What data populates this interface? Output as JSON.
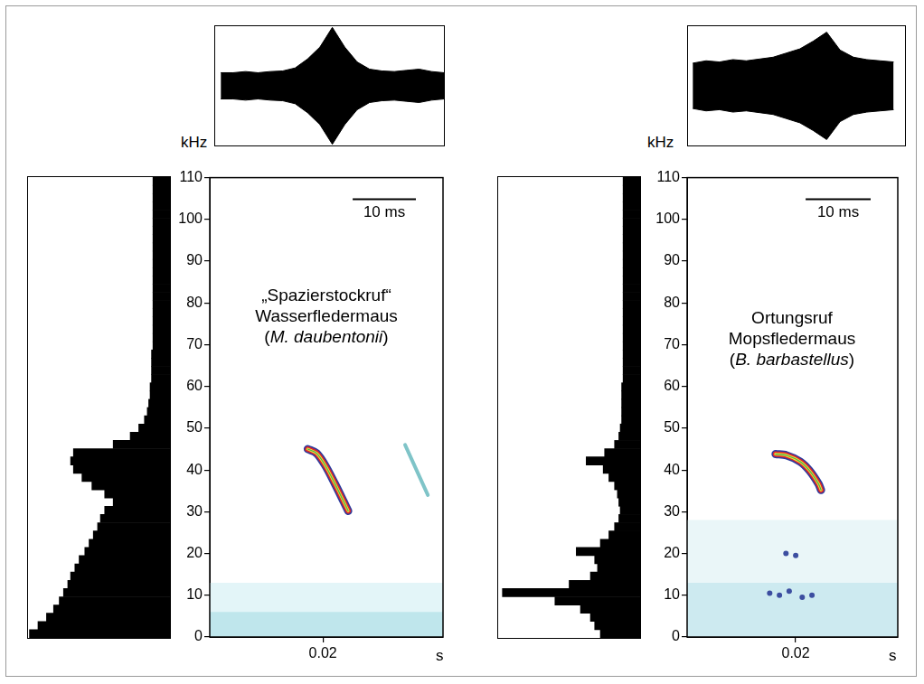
{
  "chart_data": [
    {
      "type": "spectrogram",
      "title": [
        "„Spazierstockruf“",
        "Wasserfledermaus",
        "(M. daubentonii)"
      ],
      "y_label": "kHz",
      "x_label": "s",
      "xlim": [
        0.0021,
        0.039
      ],
      "xticks": [
        0.02
      ],
      "ylim": [
        0,
        110
      ],
      "yticks": [
        0,
        10,
        20,
        30,
        40,
        50,
        60,
        70,
        80,
        90,
        100,
        110
      ],
      "grid": false,
      "scale_bar": {
        "value": 0.01,
        "label": "10 ms"
      },
      "series": [
        {
          "type": "area",
          "color": "#e3f5f8",
          "x": [
            0.0021,
            0.039
          ],
          "values": [
            13,
            13
          ]
        },
        {
          "type": "area",
          "color": "#bfe6ec",
          "x": [
            0.0021,
            0.039
          ],
          "values": [
            6,
            6
          ]
        },
        {
          "type": "line",
          "color": "#7fc4c8",
          "x": [
            0.033,
            0.0342,
            0.0354,
            0.0366
          ],
          "values": [
            46,
            42,
            38,
            34
          ]
        },
        {
          "type": "contour",
          "color": "#e0262a",
          "x": [
            0.0176,
            0.019,
            0.0204,
            0.0219,
            0.0233,
            0.024
          ],
          "values": [
            45,
            44,
            41,
            36.7,
            32.4,
            30.2
          ]
        }
      ],
      "spectrum": {
        "type": "bar",
        "orientation": "horizontal",
        "color": "#000000",
        "tick_labels": false,
        "xlim": [
          0,
          100
        ],
        "categories": [
          0,
          2,
          4,
          6,
          8,
          10,
          12,
          14,
          16,
          18,
          20,
          22,
          24,
          26,
          28,
          30,
          32,
          34,
          36,
          38,
          40,
          42,
          44,
          46,
          48,
          50,
          52,
          54,
          56,
          58,
          60,
          62,
          64,
          66,
          68,
          70,
          72,
          74,
          76,
          78,
          80,
          82,
          84,
          86,
          88,
          90,
          92,
          94,
          96,
          98,
          100,
          102,
          104,
          106,
          108,
          110
        ],
        "values": [
          99,
          93,
          87,
          82,
          78,
          75,
          72,
          70,
          67,
          64,
          60,
          57,
          54,
          51,
          49,
          46,
          40,
          46,
          55,
          62,
          68,
          70,
          68,
          40,
          28,
          22,
          18,
          16,
          15,
          14,
          14,
          13,
          13,
          13,
          13,
          12,
          12,
          12,
          12,
          12,
          12,
          12,
          12,
          12,
          12,
          12,
          12,
          12,
          12,
          12,
          12,
          12,
          12,
          12,
          12,
          12
        ]
      },
      "oscillogram": {
        "type": "line",
        "color": "#000000",
        "tick_labels": false,
        "ylim": [
          -100,
          100
        ],
        "x": [
          0.003,
          0.005,
          0.007,
          0.009,
          0.011,
          0.013,
          0.015,
          0.017,
          0.019,
          0.021,
          0.023,
          0.025,
          0.027,
          0.029,
          0.031,
          0.033,
          0.035,
          0.037,
          0.039
        ],
        "values": [
          22,
          22,
          24,
          22,
          24,
          25,
          30,
          45,
          65,
          98,
          65,
          40,
          28,
          25,
          24,
          26,
          28,
          24,
          22
        ]
      }
    },
    {
      "type": "spectrogram",
      "title": [
        "Ortungsruf",
        "Mopsfledermaus",
        "(B. barbastellus)"
      ],
      "y_label": "kHz",
      "x_label": "s",
      "xlim": [
        0.0033,
        0.0357
      ],
      "xticks": [
        0.02
      ],
      "ylim": [
        0,
        110
      ],
      "yticks": [
        0,
        10,
        20,
        30,
        40,
        50,
        60,
        70,
        80,
        90,
        100,
        110
      ],
      "grid": false,
      "scale_bar": {
        "value": 0.01,
        "label": "10 ms"
      },
      "series": [
        {
          "type": "area",
          "color": "#eaf6f8",
          "x": [
            0.0033,
            0.0357
          ],
          "values": [
            28,
            28
          ]
        },
        {
          "type": "area",
          "color": "#cdeaf0",
          "x": [
            0.0033,
            0.0357
          ],
          "values": [
            13,
            13
          ]
        },
        {
          "type": "scatter",
          "marker": "circle",
          "color": "#3c4ea0",
          "x": [
            0.016,
            0.0175,
            0.019,
            0.021,
            0.0225,
            0.02,
            0.0185
          ],
          "values": [
            10.5,
            10,
            11,
            9.5,
            10,
            19.5,
            20
          ]
        },
        {
          "type": "contour",
          "color": "#e0262a",
          "x": [
            0.0169,
            0.0186,
            0.0207,
            0.0221,
            0.0235,
            0.0239
          ],
          "values": [
            43.8,
            43.5,
            42,
            39.9,
            36.7,
            35.2
          ]
        }
      ],
      "spectrum": {
        "type": "bar",
        "orientation": "horizontal",
        "color": "#000000",
        "tick_labels": false,
        "xlim": [
          0,
          100
        ],
        "categories": [
          0,
          2,
          4,
          6,
          8,
          10,
          12,
          14,
          16,
          18,
          20,
          22,
          24,
          26,
          28,
          30,
          32,
          34,
          36,
          38,
          40,
          42,
          44,
          46,
          48,
          50,
          52,
          54,
          56,
          58,
          60,
          62,
          64,
          66,
          68,
          70,
          72,
          74,
          76,
          78,
          80,
          82,
          84,
          86,
          88,
          90,
          92,
          94,
          96,
          98,
          100,
          102,
          104,
          106,
          108,
          110
        ],
        "values": [
          28,
          32,
          35,
          42,
          60,
          97,
          50,
          35,
          30,
          32,
          45,
          28,
          22,
          18,
          15,
          14,
          15,
          16,
          18,
          22,
          26,
          38,
          25,
          18,
          15,
          14,
          13,
          13,
          13,
          13,
          13,
          12,
          12,
          12,
          12,
          12,
          12,
          12,
          12,
          12,
          12,
          12,
          12,
          12,
          12,
          12,
          12,
          12,
          12,
          12,
          12,
          12,
          12,
          12,
          12,
          12
        ]
      },
      "oscillogram": {
        "type": "line",
        "color": "#000000",
        "tick_labels": false,
        "ylim": [
          -100,
          100
        ],
        "x": [
          0.004,
          0.006,
          0.008,
          0.01,
          0.012,
          0.014,
          0.016,
          0.018,
          0.02,
          0.022,
          0.024,
          0.026,
          0.028,
          0.03,
          0.032,
          0.034
        ],
        "values": [
          38,
          42,
          40,
          44,
          42,
          45,
          48,
          55,
          62,
          75,
          90,
          60,
          48,
          44,
          42,
          40
        ]
      }
    }
  ]
}
